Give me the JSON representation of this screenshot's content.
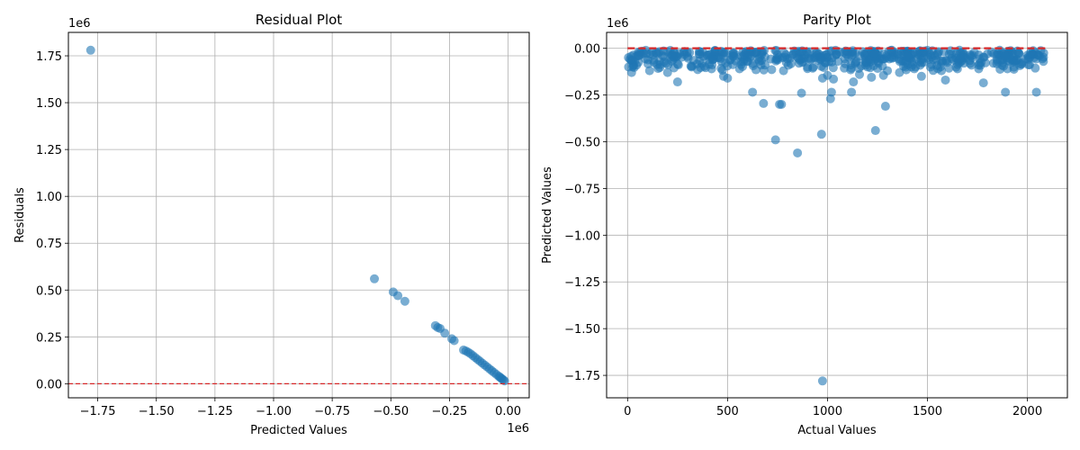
{
  "chart_data": [
    {
      "type": "scatter",
      "title": "Residual Plot",
      "xlabel": "Predicted Values",
      "ylabel": "Residuals",
      "x_offset_text": "1e6",
      "y_offset_text": "1e6",
      "x_ticks": [
        -1.75,
        -1.5,
        -1.25,
        -1.0,
        -0.75,
        -0.5,
        -0.25,
        0.0
      ],
      "x_tick_labels": [
        "−1.75",
        "−1.50",
        "−1.25",
        "−1.00",
        "−0.75",
        "−0.50",
        "−0.25",
        "0.00"
      ],
      "y_ticks": [
        0.0,
        0.25,
        0.5,
        0.75,
        1.0,
        1.25,
        1.5,
        1.75
      ],
      "y_tick_labels": [
        "0.00",
        "0.25",
        "0.50",
        "0.75",
        "1.00",
        "1.25",
        "1.50",
        "1.75"
      ],
      "xlim": [
        -1.875,
        0.09
      ],
      "ylim": [
        -0.075,
        1.875
      ],
      "grid": true,
      "point_color": "#1f77b4",
      "reference_line": {
        "y": 0,
        "style": "dashed",
        "color": "#d62728"
      },
      "points": [
        [
          -1.78,
          1.78
        ],
        [
          -0.57,
          0.56
        ],
        [
          -0.49,
          0.49
        ],
        [
          -0.47,
          0.47
        ],
        [
          -0.44,
          0.44
        ],
        [
          -0.31,
          0.31
        ],
        [
          -0.3,
          0.3
        ],
        [
          -0.29,
          0.295
        ],
        [
          -0.27,
          0.27
        ],
        [
          -0.24,
          0.24
        ],
        [
          -0.23,
          0.23
        ],
        [
          -0.19,
          0.18
        ],
        [
          -0.18,
          0.175
        ],
        [
          -0.17,
          0.168
        ],
        [
          -0.16,
          0.16
        ],
        [
          -0.15,
          0.15
        ],
        [
          -0.14,
          0.14
        ],
        [
          -0.13,
          0.13
        ],
        [
          -0.12,
          0.12
        ],
        [
          -0.11,
          0.11
        ],
        [
          -0.1,
          0.1
        ],
        [
          -0.09,
          0.09
        ],
        [
          -0.08,
          0.08
        ],
        [
          -0.07,
          0.07
        ],
        [
          -0.06,
          0.06
        ],
        [
          -0.05,
          0.05
        ],
        [
          -0.04,
          0.04
        ],
        [
          -0.035,
          0.035
        ],
        [
          -0.03,
          0.03
        ],
        [
          -0.025,
          0.025
        ],
        [
          -0.02,
          0.02
        ],
        [
          -0.015,
          0.015
        ]
      ]
    },
    {
      "type": "scatter",
      "title": "Parity Plot",
      "xlabel": "Actual Values",
      "ylabel": "Predicted Values",
      "y_offset_text": "1e6",
      "x_ticks": [
        0,
        500,
        1000,
        1500,
        2000
      ],
      "x_tick_labels": [
        "0",
        "500",
        "1000",
        "1500",
        "2000"
      ],
      "y_ticks": [
        0.0,
        -0.25,
        -0.5,
        -0.75,
        -1.0,
        -1.25,
        -1.5,
        -1.75
      ],
      "y_tick_labels": [
        "0.00",
        "−0.25",
        "−0.50",
        "−0.75",
        "−1.00",
        "−1.25",
        "−1.50",
        "−1.75"
      ],
      "xlim": [
        -105,
        2200
      ],
      "ylim": [
        -1.87,
        0.085
      ],
      "grid": true,
      "point_color": "#1f77b4",
      "reference_line": {
        "from": [
          0,
          0
        ],
        "to": [
          2090,
          0
        ],
        "style": "dashed",
        "color": "#d62728"
      },
      "band": {
        "x_min": 0,
        "x_max": 2090,
        "y_min": -0.12,
        "y_max": -0.01
      },
      "points": [
        [
          975,
          -1.78
        ],
        [
          850,
          -0.56
        ],
        [
          740,
          -0.49
        ],
        [
          970,
          -0.46
        ],
        [
          1240,
          -0.44
        ],
        [
          760,
          -0.3
        ],
        [
          770,
          -0.3
        ],
        [
          680,
          -0.295
        ],
        [
          1290,
          -0.31
        ],
        [
          1015,
          -0.27
        ],
        [
          870,
          -0.24
        ],
        [
          1020,
          -0.235
        ],
        [
          1120,
          -0.235
        ],
        [
          625,
          -0.235
        ],
        [
          1890,
          -0.235
        ],
        [
          2045,
          -0.235
        ],
        [
          1780,
          -0.185
        ],
        [
          1590,
          -0.17
        ],
        [
          250,
          -0.18
        ],
        [
          1130,
          -0.18
        ],
        [
          1030,
          -0.165
        ],
        [
          975,
          -0.16
        ],
        [
          1220,
          -0.155
        ],
        [
          1470,
          -0.15
        ],
        [
          500,
          -0.16
        ],
        [
          480,
          -0.15
        ],
        [
          1000,
          -0.145
        ],
        [
          1160,
          -0.14
        ],
        [
          1280,
          -0.145
        ],
        [
          1360,
          -0.13
        ],
        [
          1300,
          -0.12
        ],
        [
          1570,
          -0.12
        ],
        [
          1650,
          -0.11
        ],
        [
          1900,
          -0.11
        ],
        [
          2080,
          -0.07
        ],
        [
          2060,
          -0.04
        ],
        [
          1830,
          -0.08
        ],
        [
          1720,
          -0.09
        ],
        [
          1440,
          -0.1
        ],
        [
          1200,
          -0.1
        ],
        [
          900,
          -0.1
        ],
        [
          780,
          -0.12
        ],
        [
          560,
          -0.11
        ],
        [
          420,
          -0.11
        ],
        [
          320,
          -0.1
        ],
        [
          200,
          -0.13
        ],
        [
          110,
          -0.12
        ],
        [
          20,
          -0.13
        ],
        [
          5,
          -0.1
        ],
        [
          1950,
          -0.06
        ],
        [
          1800,
          -0.03
        ]
      ]
    }
  ]
}
